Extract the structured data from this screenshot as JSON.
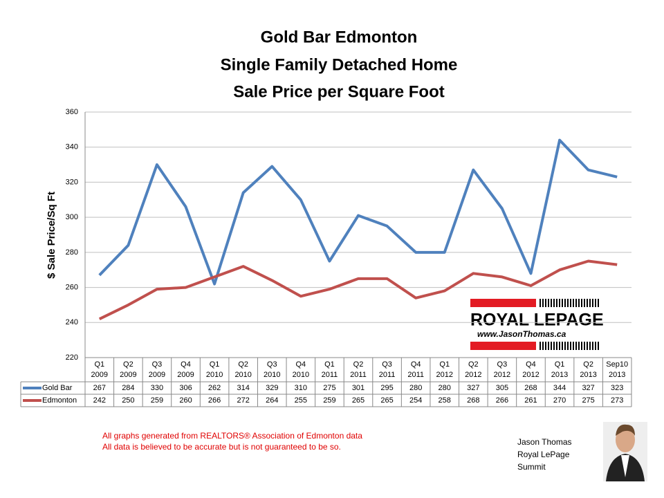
{
  "chart_data": {
    "type": "line",
    "title": [
      "Gold Bar Edmonton",
      "Single Family Detached Home",
      "Sale Price per Square Foot"
    ],
    "y_label": "$ Sale Price/Sq Ft",
    "categories": [
      [
        "Q1",
        "2009"
      ],
      [
        "Q2",
        "2009"
      ],
      [
        "Q3",
        "2009"
      ],
      [
        "Q4",
        "2009"
      ],
      [
        "Q1",
        "2010"
      ],
      [
        "Q2",
        "2010"
      ],
      [
        "Q3",
        "2010"
      ],
      [
        "Q4",
        "2010"
      ],
      [
        "Q1",
        "2011"
      ],
      [
        "Q2",
        "2011"
      ],
      [
        "Q3",
        "2011"
      ],
      [
        "Q4",
        "2011"
      ],
      [
        "Q1",
        "2012"
      ],
      [
        "Q2",
        "2012"
      ],
      [
        "Q3",
        "2012"
      ],
      [
        "Q4",
        "2012"
      ],
      [
        "Q1",
        "2013"
      ],
      [
        "Q2",
        "2013"
      ],
      [
        "Sep10",
        "2013"
      ]
    ],
    "series": [
      {
        "name": "Gold Bar",
        "color": "#4f81bd",
        "values": [
          267,
          284,
          330,
          306,
          262,
          314,
          329,
          310,
          275,
          301,
          295,
          280,
          280,
          327,
          305,
          268,
          344,
          327,
          323
        ]
      },
      {
        "name": "Edmonton",
        "color": "#c0504d",
        "values": [
          242,
          250,
          259,
          260,
          266,
          272,
          264,
          255,
          259,
          265,
          265,
          254,
          258,
          268,
          266,
          261,
          270,
          275,
          273
        ]
      }
    ],
    "ylim": [
      220,
      360
    ],
    "yticks": [
      220,
      240,
      260,
      280,
      300,
      320,
      340,
      360
    ],
    "grid": true
  },
  "logo": {
    "brand": "ROYAL LEPAGE",
    "url": "www.JasonThomas.ca"
  },
  "notes": [
    "All graphs generated from REALTORS® Association of Edmonton data",
    "All data is believed to be accurate but is not guaranteed to be so."
  ],
  "agent": [
    "Jason Thomas",
    "Royal LePage",
    "Summit"
  ]
}
